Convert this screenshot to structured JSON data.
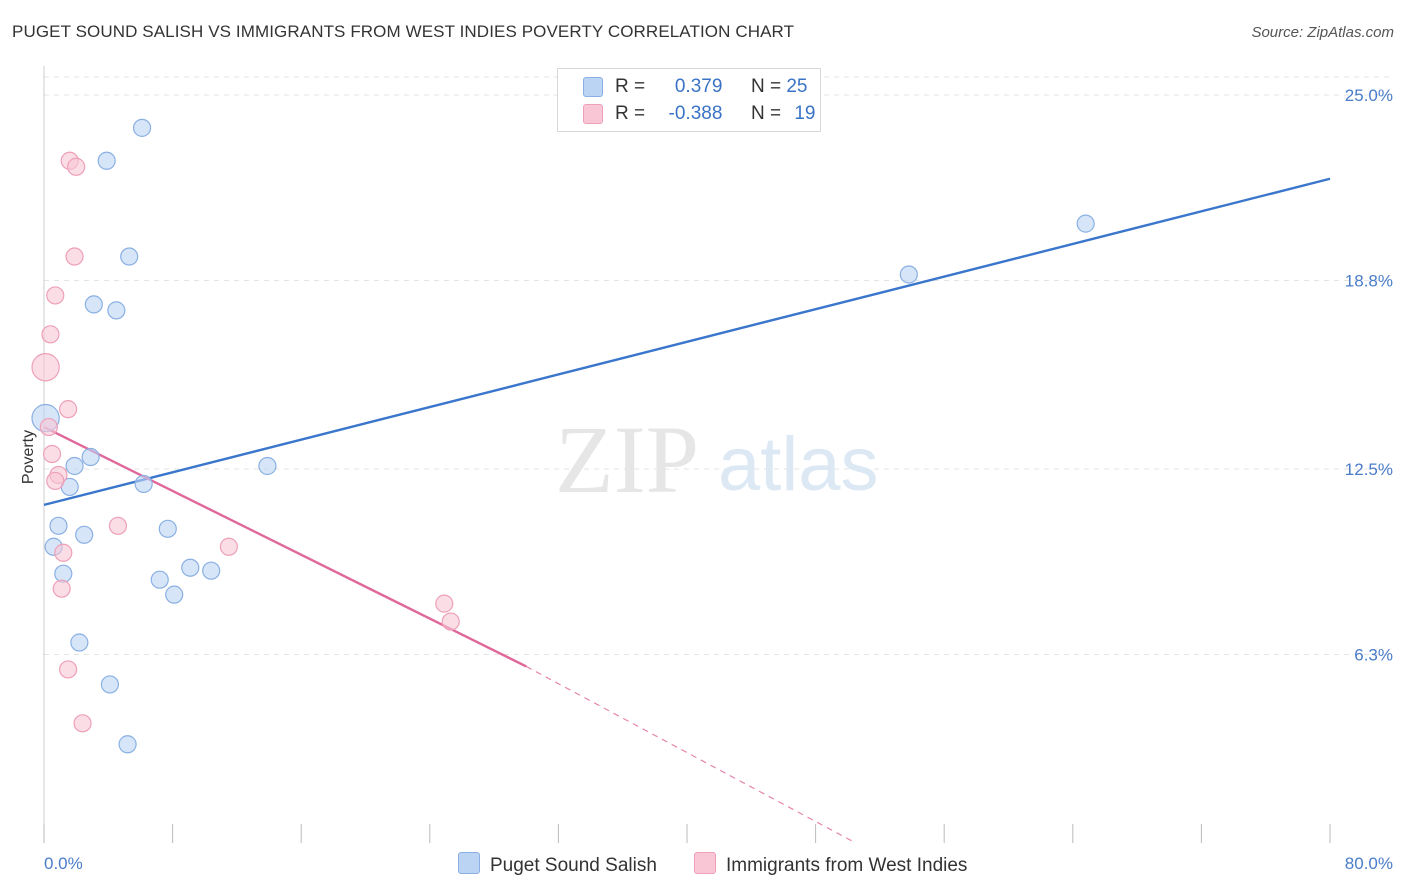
{
  "header": {
    "title": "PUGET SOUND SALISH VS IMMIGRANTS FROM WEST INDIES POVERTY CORRELATION CHART",
    "source": "Source: ZipAtlas.com"
  },
  "watermark": {
    "zip": "ZIP",
    "atlas": "atlas"
  },
  "legend": {
    "series1": {
      "r_label": "R =",
      "r_value": "0.379",
      "n_label": "N =",
      "n_value": "25"
    },
    "series2": {
      "r_label": "R =",
      "r_value": "-0.388",
      "n_label": "N =",
      "n_value": "19"
    }
  },
  "colors": {
    "blue_fill": "#bcd4f4",
    "blue_stroke": "#8ab0e3",
    "blue_line": "#3a76cc",
    "pink_fill": "#f9c6d6",
    "pink_stroke": "#eea0b8",
    "pink_line": "#e0679a",
    "grid": "#e3e3e3"
  },
  "chart_data": {
    "type": "scatter",
    "title": "PUGET SOUND SALISH VS IMMIGRANTS FROM WEST INDIES POVERTY CORRELATION CHART",
    "xlabel": "",
    "ylabel": "Poverty",
    "xlim": [
      0,
      80
    ],
    "ylim": [
      0,
      25.6
    ],
    "x_tick_labels": [
      "0.0%",
      "80.0%"
    ],
    "y_ticks": [
      6.3,
      12.5,
      18.8,
      25.0
    ],
    "y_tick_labels": [
      "6.3%",
      "12.5%",
      "18.8%",
      "25.0%"
    ],
    "grid": true,
    "series": [
      {
        "name": "Puget Sound Salish",
        "color": "#bcd4f4",
        "points": [
          {
            "x": 6.1,
            "y": 23.9,
            "s": 1
          },
          {
            "x": 3.9,
            "y": 22.8,
            "s": 1
          },
          {
            "x": 5.3,
            "y": 19.6,
            "s": 1
          },
          {
            "x": 3.1,
            "y": 18.0,
            "s": 1
          },
          {
            "x": 4.5,
            "y": 17.8,
            "s": 1
          },
          {
            "x": 0.1,
            "y": 14.2,
            "s": 1.6
          },
          {
            "x": 2.9,
            "y": 12.9,
            "s": 1
          },
          {
            "x": 1.9,
            "y": 12.6,
            "s": 1
          },
          {
            "x": 13.9,
            "y": 12.6,
            "s": 1
          },
          {
            "x": 6.2,
            "y": 12.0,
            "s": 1
          },
          {
            "x": 1.6,
            "y": 11.9,
            "s": 1
          },
          {
            "x": 0.9,
            "y": 10.6,
            "s": 1
          },
          {
            "x": 7.7,
            "y": 10.5,
            "s": 1
          },
          {
            "x": 2.5,
            "y": 10.3,
            "s": 1
          },
          {
            "x": 0.6,
            "y": 9.9,
            "s": 1
          },
          {
            "x": 9.1,
            "y": 9.2,
            "s": 1
          },
          {
            "x": 10.4,
            "y": 9.1,
            "s": 1
          },
          {
            "x": 1.2,
            "y": 9.0,
            "s": 1
          },
          {
            "x": 7.2,
            "y": 8.8,
            "s": 1
          },
          {
            "x": 8.1,
            "y": 8.3,
            "s": 1
          },
          {
            "x": 2.2,
            "y": 6.7,
            "s": 1
          },
          {
            "x": 4.1,
            "y": 5.3,
            "s": 1
          },
          {
            "x": 5.2,
            "y": 3.3,
            "s": 1
          },
          {
            "x": 53.8,
            "y": 19.0,
            "s": 1
          },
          {
            "x": 64.8,
            "y": 20.7,
            "s": 1
          }
        ]
      },
      {
        "name": "Immigrants from West Indies",
        "color": "#f9c6d6",
        "points": [
          {
            "x": 1.6,
            "y": 22.8,
            "s": 1
          },
          {
            "x": 2.0,
            "y": 22.6,
            "s": 1
          },
          {
            "x": 1.9,
            "y": 19.6,
            "s": 1
          },
          {
            "x": 0.7,
            "y": 18.3,
            "s": 1
          },
          {
            "x": 0.4,
            "y": 17.0,
            "s": 1
          },
          {
            "x": 0.1,
            "y": 15.9,
            "s": 1.6
          },
          {
            "x": 1.5,
            "y": 14.5,
            "s": 1
          },
          {
            "x": 0.3,
            "y": 13.9,
            "s": 1
          },
          {
            "x": 0.5,
            "y": 13.0,
            "s": 1
          },
          {
            "x": 0.9,
            "y": 12.3,
            "s": 1
          },
          {
            "x": 0.7,
            "y": 12.1,
            "s": 1
          },
          {
            "x": 4.6,
            "y": 10.6,
            "s": 1
          },
          {
            "x": 1.2,
            "y": 9.7,
            "s": 1
          },
          {
            "x": 11.5,
            "y": 9.9,
            "s": 1
          },
          {
            "x": 1.1,
            "y": 8.5,
            "s": 1
          },
          {
            "x": 24.9,
            "y": 8.0,
            "s": 1
          },
          {
            "x": 25.3,
            "y": 7.4,
            "s": 1
          },
          {
            "x": 1.5,
            "y": 5.8,
            "s": 1
          },
          {
            "x": 2.4,
            "y": 4.0,
            "s": 1
          }
        ]
      }
    ],
    "trendlines": [
      {
        "series": "Puget Sound Salish",
        "x0": 0,
        "y0": 11.3,
        "x1": 80,
        "y1": 22.2,
        "dashed_to": null
      },
      {
        "series": "Immigrants from West Indies",
        "x0": 0,
        "y0": 13.9,
        "x1": 30,
        "y1": 5.9,
        "dashed_to": [
          50.5,
          0
        ]
      }
    ]
  },
  "bottom_legend": {
    "series1_label": "Puget Sound Salish",
    "series2_label": "Immigrants from West Indies"
  }
}
